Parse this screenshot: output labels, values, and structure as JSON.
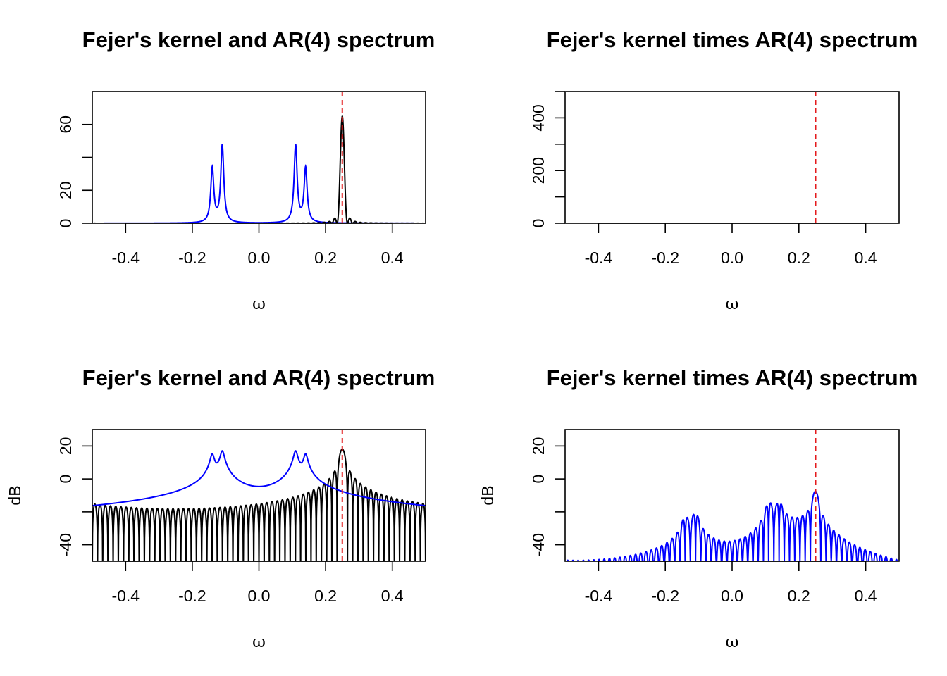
{
  "chart_data": [
    {
      "type": "line",
      "title": "Fejer's kernel and AR(4) spectrum",
      "xlabel": "ω",
      "ylabel": "",
      "xlim": [
        -0.5,
        0.5
      ],
      "ylim": [
        0,
        80
      ],
      "xticks": [
        "-0.4",
        "-0.2",
        "0.0",
        "0.2",
        "0.4"
      ],
      "yticks": [
        "0",
        "20",
        "60"
      ],
      "ytick_values": [
        0,
        20,
        40,
        60
      ],
      "scale": "linear",
      "vline": {
        "x": 0.25,
        "color": "#e41a1c",
        "style": "dashed"
      },
      "series": [
        {
          "kind": "ar4",
          "color": "#0000ff",
          "peaks": [
            -0.14,
            -0.11,
            0.11,
            0.14
          ],
          "peak_values": [
            33,
            47,
            47,
            33
          ]
        },
        {
          "kind": "fejer",
          "color": "#000000",
          "center": 0.25,
          "peak": 65
        }
      ]
    },
    {
      "type": "line",
      "title": "Fejer's kernel times AR(4) spectrum",
      "xlabel": "ω",
      "ylabel": "",
      "xlim": [
        -0.5,
        0.5
      ],
      "ylim": [
        0,
        500
      ],
      "xticks": [
        "-0.4",
        "-0.2",
        "0.0",
        "0.2",
        "0.4"
      ],
      "yticks": [
        "0",
        "200",
        "400"
      ],
      "ytick_values": [
        0,
        100,
        200,
        300,
        400,
        500
      ],
      "scale": "linear",
      "vline": {
        "x": 0.25,
        "color": "#e41a1c",
        "style": "dashed"
      },
      "series": [
        {
          "kind": "product",
          "color": "#0000ff"
        }
      ]
    },
    {
      "type": "line",
      "title": "Fejer's kernel and AR(4) spectrum",
      "xlabel": "ω",
      "ylabel": "dB",
      "xlim": [
        -0.5,
        0.5
      ],
      "ylim": [
        -50,
        30
      ],
      "xticks": [
        "-0.4",
        "-0.2",
        "0.0",
        "0.2",
        "0.4"
      ],
      "yticks": [
        "-40",
        "0",
        "20"
      ],
      "ytick_values": [
        -40,
        -20,
        0,
        20
      ],
      "scale": "db",
      "vline": {
        "x": 0.25,
        "color": "#e41a1c",
        "style": "dashed"
      },
      "series": [
        {
          "kind": "fejer",
          "color": "#000000",
          "center": 0.25,
          "peak_db": 18
        },
        {
          "kind": "ar4",
          "color": "#0000ff",
          "peaks": [
            -0.14,
            -0.11,
            0.11,
            0.14
          ],
          "peak_db": [
            15,
            17,
            17,
            15
          ]
        }
      ]
    },
    {
      "type": "line",
      "title": "Fejer's kernel times AR(4) spectrum",
      "xlabel": "ω",
      "ylabel": "dB",
      "xlim": [
        -0.5,
        0.5
      ],
      "ylim": [
        -50,
        30
      ],
      "xticks": [
        "-0.4",
        "-0.2",
        "0.0",
        "0.2",
        "0.4"
      ],
      "yticks": [
        "-40",
        "0",
        "20"
      ],
      "ytick_values": [
        -40,
        -20,
        0,
        20
      ],
      "scale": "db",
      "vline": {
        "x": 0.25,
        "color": "#e41a1c",
        "style": "dashed"
      },
      "series": [
        {
          "kind": "product",
          "color": "#0000ff"
        }
      ]
    }
  ]
}
